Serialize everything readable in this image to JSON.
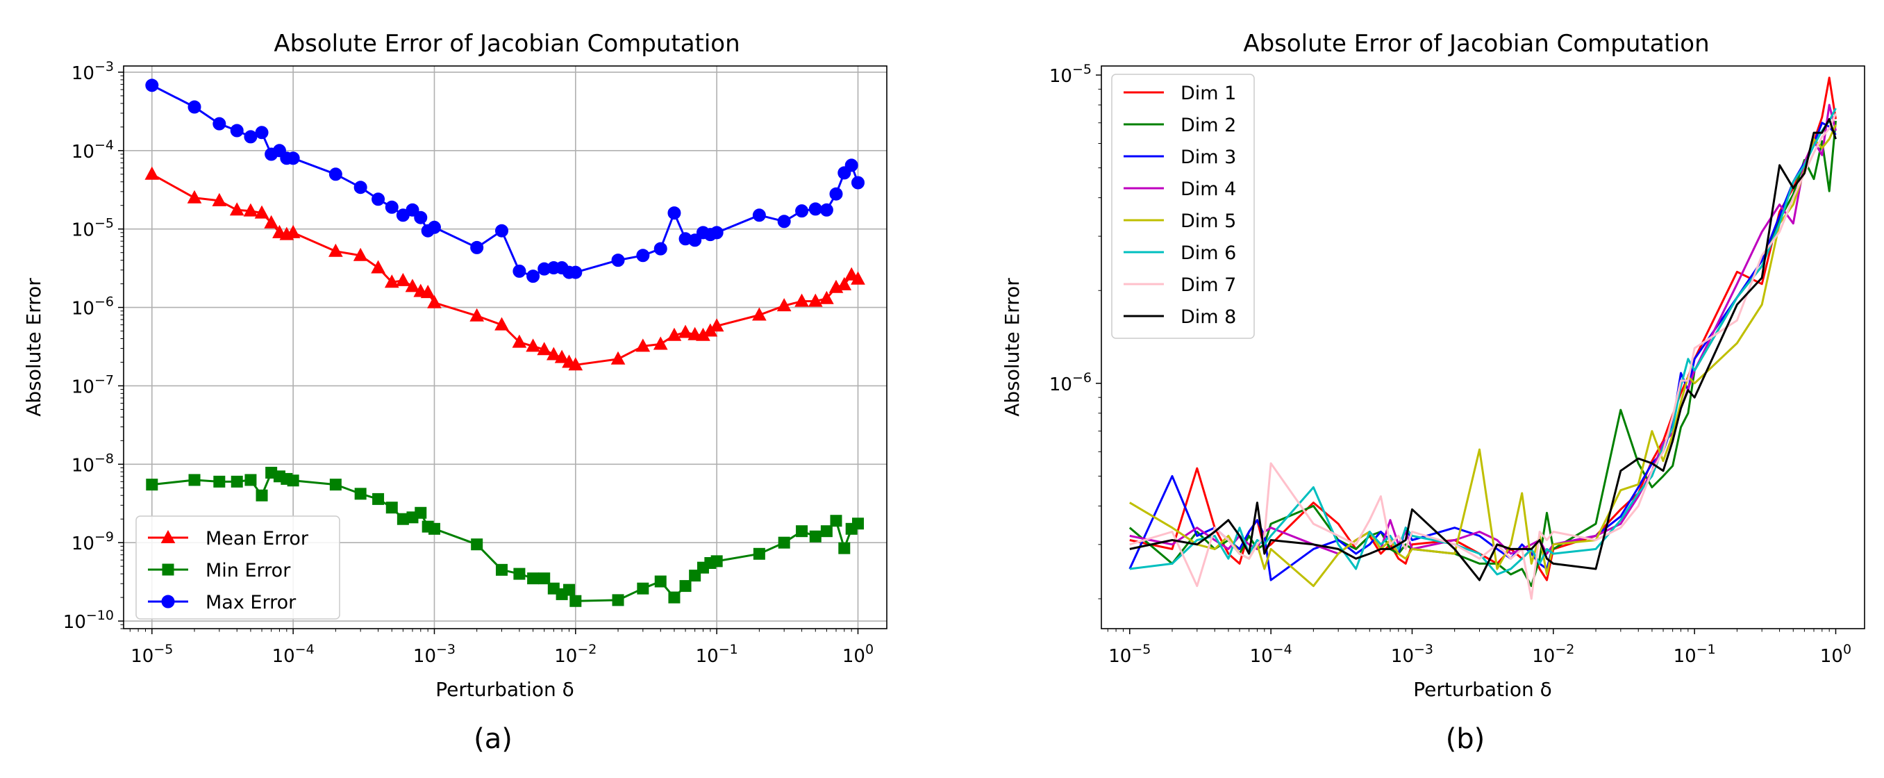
{
  "chart_data": [
    {
      "type": "line",
      "panel_label": "(a)",
      "title": "Absolute Error of Jacobian Computation",
      "xlabel": "Perturbation δ",
      "ylabel": "Absolute Error",
      "xscale": "log",
      "yscale": "log",
      "xlim": [
        6.3e-06,
        1.6
      ],
      "ylim": [
        8e-11,
        0.0012
      ],
      "grid": true,
      "legend_position": "lower-left",
      "xticks": [
        {
          "base": "10",
          "exp": "−5",
          "value": 1e-05
        },
        {
          "base": "10",
          "exp": "−4",
          "value": 0.0001
        },
        {
          "base": "10",
          "exp": "−3",
          "value": 0.001
        },
        {
          "base": "10",
          "exp": "−2",
          "value": 0.01
        },
        {
          "base": "10",
          "exp": "−1",
          "value": 0.1
        },
        {
          "base": "10",
          "exp": "0",
          "value": 1
        }
      ],
      "yticks": [
        {
          "base": "10",
          "exp": "−10",
          "value": 1e-10
        },
        {
          "base": "10",
          "exp": "−9",
          "value": 1e-09
        },
        {
          "base": "10",
          "exp": "−8",
          "value": 1e-08
        },
        {
          "base": "10",
          "exp": "−7",
          "value": 1e-07
        },
        {
          "base": "10",
          "exp": "−6",
          "value": 1e-06
        },
        {
          "base": "10",
          "exp": "−5",
          "value": 1e-05
        },
        {
          "base": "10",
          "exp": "−4",
          "value": 0.0001
        },
        {
          "base": "10",
          "exp": "−3",
          "value": 0.001
        }
      ],
      "x": [
        1e-05,
        2e-05,
        3e-05,
        4e-05,
        5e-05,
        6e-05,
        7e-05,
        8e-05,
        9e-05,
        0.0001,
        0.0002,
        0.0003,
        0.0004,
        0.0005,
        0.0006,
        0.0007,
        0.0008,
        0.0009,
        0.001,
        0.002,
        0.003,
        0.004,
        0.005,
        0.006,
        0.007,
        0.008,
        0.009,
        0.01,
        0.02,
        0.03,
        0.04,
        0.05,
        0.06,
        0.07,
        0.08,
        0.09,
        0.1,
        0.2,
        0.3,
        0.4,
        0.5,
        0.6,
        0.7,
        0.8,
        0.9,
        1.0
      ],
      "series": [
        {
          "name": "Mean Error",
          "color": "#ff0000",
          "marker": "triangle",
          "values": [
            5e-05,
            2.5e-05,
            2.3e-05,
            1.75e-05,
            1.7e-05,
            1.6e-05,
            1.2e-05,
            9e-06,
            8.5e-06,
            9e-06,
            5.2e-06,
            4.6e-06,
            3.2e-06,
            2.1e-06,
            2.2e-06,
            1.85e-06,
            1.6e-06,
            1.55e-06,
            1.15e-06,
            7.8e-07,
            6e-07,
            3.6e-07,
            3.2e-07,
            2.9e-07,
            2.5e-07,
            2.3e-07,
            2e-07,
            1.85e-07,
            2.2e-07,
            3.2e-07,
            3.4e-07,
            4.4e-07,
            4.8e-07,
            4.5e-07,
            4.4e-07,
            5e-07,
            5.8e-07,
            8e-07,
            1.05e-06,
            1.2e-06,
            1.2e-06,
            1.3e-06,
            1.8e-06,
            1.95e-06,
            2.6e-06,
            2.3e-06
          ]
        },
        {
          "name": "Min Error",
          "color": "#008000",
          "marker": "square",
          "values": [
            5.5e-09,
            6.3e-09,
            6e-09,
            6e-09,
            6.3e-09,
            4e-09,
            7.8e-09,
            7e-09,
            6.5e-09,
            6.2e-09,
            5.5e-09,
            4.2e-09,
            3.6e-09,
            2.8e-09,
            2e-09,
            2.1e-09,
            2.4e-09,
            1.6e-09,
            1.5e-09,
            9.5e-10,
            4.5e-10,
            4e-10,
            3.5e-10,
            3.5e-10,
            2.6e-10,
            2.2e-10,
            2.5e-10,
            1.8e-10,
            1.85e-10,
            2.6e-10,
            3.2e-10,
            2e-10,
            2.8e-10,
            3.8e-10,
            4.8e-10,
            5.5e-10,
            5.8e-10,
            7.2e-10,
            1e-09,
            1.4e-09,
            1.2e-09,
            1.4e-09,
            1.9e-09,
            8.5e-10,
            1.5e-09,
            1.75e-09
          ]
        },
        {
          "name": "Max Error",
          "color": "#0000ff",
          "marker": "circle",
          "values": [
            0.00068,
            0.00036,
            0.00022,
            0.00018,
            0.00015,
            0.00017,
            9e-05,
            0.0001,
            8e-05,
            8e-05,
            5e-05,
            3.4e-05,
            2.4e-05,
            1.9e-05,
            1.5e-05,
            1.75e-05,
            1.4e-05,
            9.5e-06,
            1.05e-05,
            5.8e-06,
            9.5e-06,
            2.9e-06,
            2.5e-06,
            3.1e-06,
            3.2e-06,
            3.2e-06,
            2.8e-06,
            2.8e-06,
            4e-06,
            4.6e-06,
            5.6e-06,
            1.6e-05,
            7.5e-06,
            7.2e-06,
            9e-06,
            8.5e-06,
            9e-06,
            1.5e-05,
            1.25e-05,
            1.7e-05,
            1.8e-05,
            1.75e-05,
            2.8e-05,
            5.2e-05,
            6.5e-05,
            3.9e-05
          ]
        }
      ]
    },
    {
      "type": "line",
      "panel_label": "(b)",
      "title": "Absolute Error of Jacobian Computation",
      "xlabel": "Perturbation δ",
      "ylabel": "Absolute Error",
      "xscale": "log",
      "yscale": "log",
      "xlim": [
        6.3e-06,
        1.6
      ],
      "ylim": [
        1.6e-07,
        1.07e-05
      ],
      "grid": false,
      "legend_position": "upper-left",
      "xticks": [
        {
          "base": "10",
          "exp": "−5",
          "value": 1e-05
        },
        {
          "base": "10",
          "exp": "−4",
          "value": 0.0001
        },
        {
          "base": "10",
          "exp": "−3",
          "value": 0.001
        },
        {
          "base": "10",
          "exp": "−2",
          "value": 0.01
        },
        {
          "base": "10",
          "exp": "−1",
          "value": 0.1
        },
        {
          "base": "10",
          "exp": "0",
          "value": 1
        }
      ],
      "yticks": [
        {
          "base": "10",
          "exp": "−6",
          "value": 1e-06
        },
        {
          "base": "10",
          "exp": "−5",
          "value": 1e-05
        }
      ],
      "x": [
        1e-05,
        2e-05,
        3e-05,
        4e-05,
        5e-05,
        6e-05,
        7e-05,
        8e-05,
        9e-05,
        0.0001,
        0.0002,
        0.0003,
        0.0004,
        0.0005,
        0.0006,
        0.0007,
        0.0008,
        0.0009,
        0.001,
        0.002,
        0.003,
        0.004,
        0.005,
        0.006,
        0.007,
        0.008,
        0.009,
        0.01,
        0.02,
        0.03,
        0.04,
        0.05,
        0.06,
        0.07,
        0.08,
        0.09,
        0.1,
        0.2,
        0.3,
        0.4,
        0.5,
        0.6,
        0.7,
        0.8,
        0.9,
        1.0
      ],
      "series": [
        {
          "name": "Dim 1",
          "color": "#ff0000",
          "values": [
            3.1e-07,
            2.9e-07,
            5.3e-07,
            3.4e-07,
            2.8e-07,
            2.6e-07,
            3.3e-07,
            3.6e-07,
            2.9e-07,
            3e-07,
            4.1e-07,
            3.5e-07,
            2.9e-07,
            3.2e-07,
            2.8e-07,
            3e-07,
            2.7e-07,
            2.6e-07,
            3e-07,
            3.1e-07,
            2.8e-07,
            2.6e-07,
            2.9e-07,
            2.7e-07,
            2.9e-07,
            2.5e-07,
            2.3e-07,
            2.9e-07,
            3.2e-07,
            3.9e-07,
            4.4e-07,
            5.6e-07,
            6.5e-07,
            7.9e-07,
            9.3e-07,
            1.05e-06,
            1.2e-06,
            2.3e-06,
            2.1e-06,
            3.6e-06,
            4.3e-06,
            5.2e-06,
            6.1e-06,
            7.3e-06,
            9.8e-06,
            7.2e-06
          ]
        },
        {
          "name": "Dim 2",
          "color": "#008000",
          "values": [
            3.4e-07,
            2.6e-07,
            3.3e-07,
            2.9e-07,
            3.1e-07,
            2.8e-07,
            3.2e-07,
            2.9e-07,
            3e-07,
            3.5e-07,
            4e-07,
            3.1e-07,
            2.9e-07,
            3.2e-07,
            3.3e-07,
            2.9e-07,
            2.8e-07,
            3e-07,
            2.9e-07,
            2.8e-07,
            2.6e-07,
            2.6e-07,
            2.4e-07,
            2.5e-07,
            2.2e-07,
            2.7e-07,
            3.8e-07,
            2.9e-07,
            3.5e-07,
            8.2e-07,
            5.5e-07,
            4.6e-07,
            5e-07,
            5.4e-07,
            7.2e-07,
            8e-07,
            1.1e-06,
            1.9e-06,
            2.4e-06,
            3.4e-06,
            4.1e-06,
            5.3e-06,
            4.6e-06,
            6.1e-06,
            4.2e-06,
            7.1e-06
          ]
        },
        {
          "name": "Dim 3",
          "color": "#0000ff",
          "values": [
            2.5e-07,
            5e-07,
            3.2e-07,
            3.4e-07,
            3.1e-07,
            2.9e-07,
            3.3e-07,
            3.6e-07,
            3.2e-07,
            2.3e-07,
            2.9e-07,
            3.1e-07,
            2.8e-07,
            3e-07,
            3.3e-07,
            3.1e-07,
            2.8e-07,
            3.4e-07,
            3.1e-07,
            3.4e-07,
            3.2e-07,
            2.9e-07,
            2.7e-07,
            3e-07,
            2.8e-07,
            2.6e-07,
            2.5e-07,
            3e-07,
            3.2e-07,
            3.7e-07,
            4.6e-07,
            5.5e-07,
            6e-07,
            7.4e-07,
            1.08e-06,
            9.5e-07,
            1.2e-06,
            1.9e-06,
            2.5e-06,
            3.5e-06,
            4.5e-06,
            5.2e-06,
            6e-06,
            7e-06,
            6.8e-06,
            6.4e-06
          ]
        },
        {
          "name": "Dim 4",
          "color": "#bf00bf",
          "values": [
            3.2e-07,
            3e-07,
            3.4e-07,
            3.1e-07,
            2.9e-07,
            3.2e-07,
            3e-07,
            2.9e-07,
            3.3e-07,
            3.4e-07,
            3e-07,
            2.8e-07,
            3.1e-07,
            3.3e-07,
            2.9e-07,
            3.6e-07,
            3e-07,
            3.3e-07,
            2.9e-07,
            3.1e-07,
            3.3e-07,
            3.1e-07,
            2.8e-07,
            2.9e-07,
            3e-07,
            3.1e-07,
            2.8e-07,
            3e-07,
            3.2e-07,
            3.5e-07,
            4.3e-07,
            5.2e-07,
            6.4e-07,
            6.9e-07,
            8.3e-07,
            9.6e-07,
            1.1e-06,
            2.1e-06,
            3.1e-06,
            3.8e-06,
            3.3e-06,
            5.2e-06,
            6.1e-06,
            5.5e-06,
            8e-06,
            6.6e-06
          ]
        },
        {
          "name": "Dim 5",
          "color": "#bfbf00",
          "values": [
            4.1e-07,
            3.4e-07,
            3e-07,
            2.9e-07,
            3.2e-07,
            2.8e-07,
            2.7e-07,
            3e-07,
            2.5e-07,
            2.9e-07,
            2.2e-07,
            2.8e-07,
            3.1e-07,
            3.3e-07,
            2.9e-07,
            3.1e-07,
            2.8e-07,
            2.7e-07,
            2.9e-07,
            2.8e-07,
            6.1e-07,
            2.5e-07,
            3e-07,
            4.4e-07,
            2.6e-07,
            3.2e-07,
            2.4e-07,
            3e-07,
            3.1e-07,
            4.5e-07,
            4.7e-07,
            7e-07,
            5.6e-07,
            6.8e-07,
            8.7e-07,
            1.05e-06,
            1e-06,
            1.35e-06,
            1.8e-06,
            3.3e-06,
            3.8e-06,
            4.9e-06,
            6.2e-06,
            5.8e-06,
            6.2e-06,
            6.9e-06
          ]
        },
        {
          "name": "Dim 6",
          "color": "#00bfbf",
          "values": [
            2.5e-07,
            2.6e-07,
            3.1e-07,
            3.2e-07,
            2.7e-07,
            3.4e-07,
            2.8e-07,
            3.1e-07,
            3e-07,
            3.2e-07,
            4.6e-07,
            3e-07,
            2.5e-07,
            3.3e-07,
            3e-07,
            3.2e-07,
            2.9e-07,
            3.4e-07,
            3.2e-07,
            3e-07,
            2.8e-07,
            2.4e-07,
            2.5e-07,
            2.7e-07,
            2.9e-07,
            2.6e-07,
            2.9e-07,
            2.8e-07,
            2.9e-07,
            3.6e-07,
            4.4e-07,
            5e-07,
            6.2e-07,
            7.2e-07,
            9.8e-07,
            1.2e-06,
            1.1e-06,
            1.9e-06,
            2.4e-06,
            3.3e-06,
            4.5e-06,
            5.1e-06,
            5.9e-06,
            6.6e-06,
            7.1e-06,
            7.8e-06
          ]
        },
        {
          "name": "Dim 7",
          "color": "#ffc0cb",
          "values": [
            3e-07,
            3.3e-07,
            2.2e-07,
            3.4e-07,
            3.1e-07,
            2.8e-07,
            2.7e-07,
            3e-07,
            3.2e-07,
            5.5e-07,
            3.5e-07,
            3.2e-07,
            3e-07,
            3.6e-07,
            4.3e-07,
            3e-07,
            3.2e-07,
            2.9e-07,
            3.3e-07,
            3e-07,
            2.7e-07,
            3e-07,
            2.7e-07,
            2.9e-07,
            2e-07,
            3.3e-07,
            3.1e-07,
            3.3e-07,
            3.1e-07,
            3.4e-07,
            4e-07,
            5.2e-07,
            6e-07,
            7.8e-07,
            1.02e-06,
            1.02e-06,
            1.3e-06,
            1.6e-06,
            2.6e-06,
            3.1e-06,
            4e-06,
            4.8e-06,
            5.6e-06,
            6.3e-06,
            6.7e-06,
            7.5e-06
          ]
        },
        {
          "name": "Dim 8",
          "color": "#000000",
          "values": [
            2.9e-07,
            3.1e-07,
            3e-07,
            3.3e-07,
            3.6e-07,
            3.2e-07,
            2.8e-07,
            4.1e-07,
            2.8e-07,
            3.1e-07,
            3e-07,
            2.9e-07,
            2.7e-07,
            2.8e-07,
            2.9e-07,
            2.9e-07,
            3e-07,
            3.1e-07,
            3.9e-07,
            2.9e-07,
            2.3e-07,
            3e-07,
            2.9e-07,
            2.9e-07,
            2.9e-07,
            3.1e-07,
            2.7e-07,
            2.6e-07,
            2.5e-07,
            5.2e-07,
            5.7e-07,
            5.5e-07,
            5.2e-07,
            6.5e-07,
            8.3e-07,
            9.5e-07,
            9e-07,
            1.8e-06,
            2.2e-06,
            5.1e-06,
            4.3e-06,
            4.8e-06,
            6.5e-06,
            6.5e-06,
            7.2e-06,
            6.2e-06
          ]
        }
      ]
    }
  ]
}
